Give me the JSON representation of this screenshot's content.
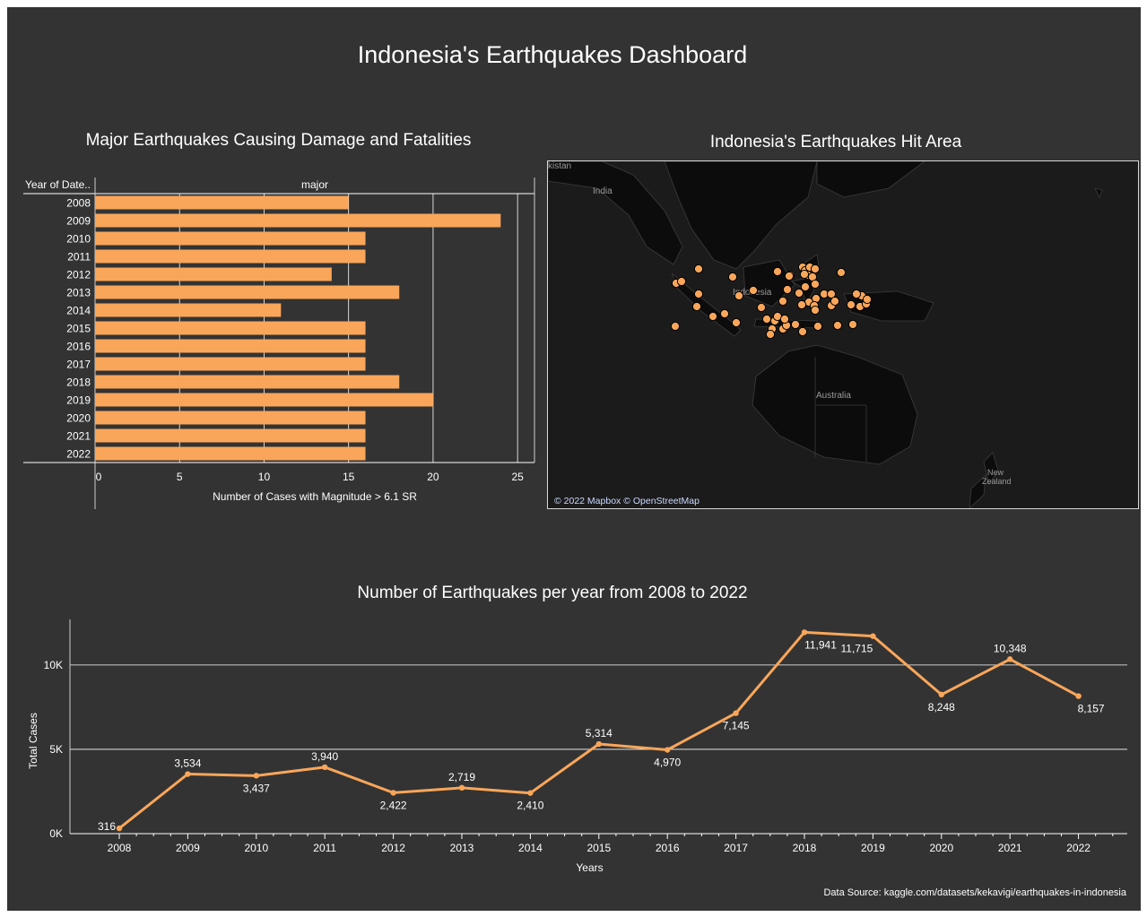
{
  "dashboard_title": "Indonesia's Earthquakes Dashboard",
  "bar_panel": {
    "title": "Major Earthquakes Causing Damage and Fatalities"
  },
  "map_panel": {
    "title": "Indonesia's Earthquakes Hit Area",
    "attribution": "© 2022 Mapbox © OpenStreetMap",
    "labels": [
      "kistan",
      "India",
      "Indonesia",
      "Australia",
      "New Zealand"
    ],
    "marker_color": "#f9a65a"
  },
  "line_panel": {
    "title": "Number of Earthquakes per year from 2008 to 2022"
  },
  "source_note": "Data Source: kaggle.com/datasets/kekavigi/earthquakes-in-indonesia",
  "chart_data": [
    {
      "type": "bar",
      "orientation": "horizontal",
      "title": "Major Earthquakes Causing Damage and Fatalities",
      "row_header": "Year of Date..",
      "column_header": "major",
      "xlabel": "Number of Cases with Magnitude > 6.1 SR",
      "categories": [
        "2008",
        "2009",
        "2010",
        "2011",
        "2012",
        "2013",
        "2014",
        "2015",
        "2016",
        "2017",
        "2018",
        "2019",
        "2020",
        "2021",
        "2022"
      ],
      "values": [
        15,
        24,
        16,
        16,
        14,
        18,
        11,
        16,
        16,
        16,
        18,
        20,
        16,
        16,
        16
      ],
      "xlim": [
        0,
        26
      ],
      "xticks": [
        0,
        5,
        10,
        15,
        20,
        25
      ],
      "color": "#f9a65a",
      "grid": true
    },
    {
      "type": "line",
      "title": "Number of Earthquakes per year from 2008 to 2022",
      "xlabel": "Years",
      "ylabel": "Total Cases",
      "x": [
        "2008",
        "2009",
        "2010",
        "2011",
        "2012",
        "2013",
        "2014",
        "2015",
        "2016",
        "2017",
        "2018",
        "2019",
        "2020",
        "2021",
        "2022"
      ],
      "values": [
        316,
        3534,
        3437,
        3940,
        2422,
        2719,
        2410,
        5314,
        4970,
        7145,
        11941,
        11715,
        8248,
        10348,
        8157
      ],
      "data_labels": [
        "316",
        "3,534",
        "3,437",
        "3,940",
        "2,422",
        "2,719",
        "2,410",
        "5,314",
        "4,970",
        "7,145",
        "11,941",
        "11,715",
        "8,248",
        "10,348",
        "8,157"
      ],
      "yticks": [
        0,
        5000,
        10000
      ],
      "ytick_labels": [
        "0K",
        "5K",
        "10K"
      ],
      "ylim": [
        0,
        12600
      ],
      "color": "#f9a65a",
      "grid": true
    }
  ]
}
